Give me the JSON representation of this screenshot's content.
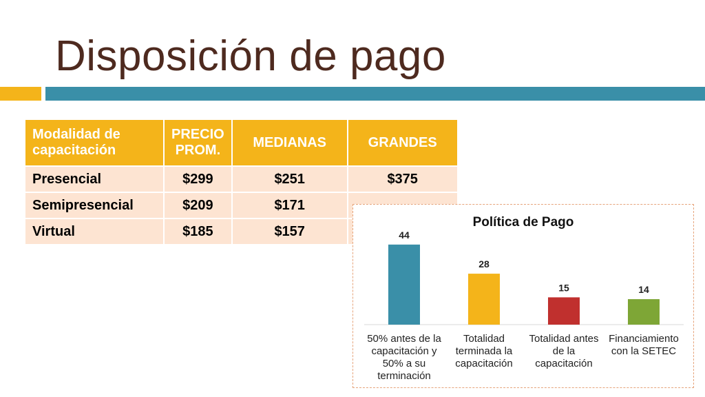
{
  "slide": {
    "title": "Disposición de pago",
    "colors": {
      "accent_orange": "#f4b41a",
      "accent_teal": "#3a8fa8",
      "title_brown": "#4e2a1f"
    }
  },
  "table": {
    "header_bg": "#f4b41a",
    "row_bg": "#fde4d2",
    "headers": [
      "Modalidad de capacitación",
      "PRECIO PROM.",
      "MEDIANAS",
      "GRANDES"
    ],
    "rows": [
      [
        "Presencial",
        "$299",
        "$251",
        "$375"
      ],
      [
        "Semipresencial",
        "$209",
        "$171",
        ""
      ],
      [
        "Virtual",
        "$185",
        "$157",
        ""
      ]
    ]
  },
  "chart_data": {
    "type": "bar",
    "title": "Política de Pago",
    "categories": [
      "50% antes de la capacitación y 50% a su terminación",
      "Totalidad terminada la capacitación",
      "Totalidad antes de la capacitación",
      "Financiamiento con la SETEC"
    ],
    "category_lines": [
      [
        "50% antes de la",
        "capacitación y",
        "50% a su",
        "terminación"
      ],
      [
        "Totalidad",
        "terminada la",
        "capacitación"
      ],
      [
        "Totalidad antes",
        "de la",
        "capacitación"
      ],
      [
        "Financiamiento",
        "con la SETEC"
      ]
    ],
    "values": [
      44,
      28,
      15,
      14
    ],
    "bar_colors": [
      "#3a8fa8",
      "#f4b41a",
      "#c0302e",
      "#7ea636"
    ],
    "ylim": [
      0,
      50
    ],
    "grid": false,
    "legend": "none",
    "xlabel": "",
    "ylabel": ""
  }
}
